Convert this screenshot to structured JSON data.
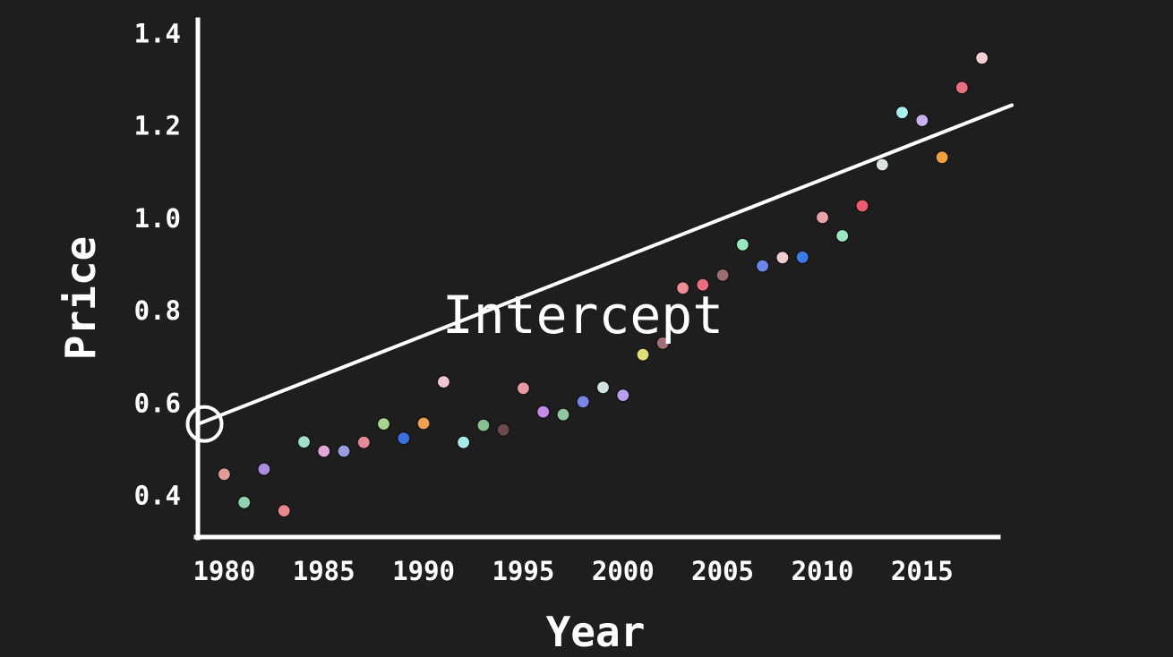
{
  "chart_data": {
    "type": "scatter",
    "title": "",
    "xlabel": "Year",
    "ylabel": "Price",
    "xlim": [
      1978.5,
      2019.5
    ],
    "ylim": [
      0.31,
      1.43
    ],
    "x_ticks": [
      1980,
      1985,
      1990,
      1995,
      2000,
      2005,
      2010,
      2015
    ],
    "y_ticks": [
      0.4,
      0.6,
      0.8,
      1.0,
      1.2,
      1.4
    ],
    "y_tick_labels": [
      "0.4",
      "0.6",
      "0.8",
      "1.0",
      "1.2",
      "1.4"
    ],
    "grid": false,
    "points": [
      {
        "x": 1980,
        "y": 0.446,
        "color": "#e39a9a"
      },
      {
        "x": 1981,
        "y": 0.385,
        "color": "#8fd6b0"
      },
      {
        "x": 1982,
        "y": 0.457,
        "color": "#a98ce0"
      },
      {
        "x": 1983,
        "y": 0.367,
        "color": "#e88888"
      },
      {
        "x": 1984,
        "y": 0.516,
        "color": "#9fe0c8"
      },
      {
        "x": 1985,
        "y": 0.496,
        "color": "#e4a6d8"
      },
      {
        "x": 1986,
        "y": 0.496,
        "color": "#9a9ee0"
      },
      {
        "x": 1987,
        "y": 0.515,
        "color": "#e68a9a"
      },
      {
        "x": 1988,
        "y": 0.555,
        "color": "#a6d68c"
      },
      {
        "x": 1989,
        "y": 0.524,
        "color": "#3b6fe0"
      },
      {
        "x": 1990,
        "y": 0.556,
        "color": "#f0a050"
      },
      {
        "x": 1991,
        "y": 0.646,
        "color": "#f2c6d2"
      },
      {
        "x": 1992,
        "y": 0.515,
        "color": "#a8ecec"
      },
      {
        "x": 1993,
        "y": 0.552,
        "color": "#86c08e"
      },
      {
        "x": 1994,
        "y": 0.542,
        "color": "#6a4a4a"
      },
      {
        "x": 1995,
        "y": 0.632,
        "color": "#e89aa2"
      },
      {
        "x": 1996,
        "y": 0.581,
        "color": "#c48ae6"
      },
      {
        "x": 1997,
        "y": 0.575,
        "color": "#90c8a2"
      },
      {
        "x": 1998,
        "y": 0.603,
        "color": "#7a86e6"
      },
      {
        "x": 1999,
        "y": 0.634,
        "color": "#cfe0e0"
      },
      {
        "x": 2000,
        "y": 0.617,
        "color": "#b8a2f0"
      },
      {
        "x": 2001,
        "y": 0.705,
        "color": "#e0dc7a"
      },
      {
        "x": 2002,
        "y": 0.73,
        "color": "#a07078"
      },
      {
        "x": 2003,
        "y": 0.849,
        "color": "#ec8e96"
      },
      {
        "x": 2004,
        "y": 0.856,
        "color": "#ea6e7e"
      },
      {
        "x": 2005,
        "y": 0.877,
        "color": "#9a6e6e"
      },
      {
        "x": 2006,
        "y": 0.943,
        "color": "#9ae8c0"
      },
      {
        "x": 2007,
        "y": 0.897,
        "color": "#6a86e6"
      },
      {
        "x": 2008,
        "y": 0.915,
        "color": "#f0cece"
      },
      {
        "x": 2009,
        "y": 0.916,
        "color": "#3e7ae8"
      },
      {
        "x": 2010,
        "y": 1.002,
        "color": "#e8a4a8"
      },
      {
        "x": 2011,
        "y": 0.962,
        "color": "#9ae6be"
      },
      {
        "x": 2012,
        "y": 1.027,
        "color": "#ec5c6e"
      },
      {
        "x": 2013,
        "y": 1.116,
        "color": "#d8e4e4"
      },
      {
        "x": 2014,
        "y": 1.229,
        "color": "#a8f0ee"
      },
      {
        "x": 2015,
        "y": 1.212,
        "color": "#cab0ec"
      },
      {
        "x": 2016,
        "y": 1.132,
        "color": "#f0a040"
      },
      {
        "x": 2017,
        "y": 1.283,
        "color": "#e8707e"
      },
      {
        "x": 2018,
        "y": 1.347,
        "color": "#f4d0d4"
      }
    ],
    "regression_line": {
      "x0": 1978.7,
      "y0": 0.555,
      "x1": 2019.5,
      "y1": 1.245
    },
    "intercept": {
      "x": 1978.7,
      "y": 0.555
    },
    "annotation": "Intercept"
  }
}
